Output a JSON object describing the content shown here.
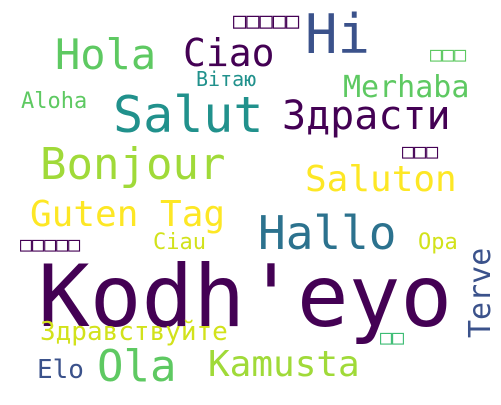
{
  "words": [
    {
      "text": "Kodh'eyo",
      "color": "#440154"
    },
    {
      "text": "Hi",
      "color": "#3b528b"
    },
    {
      "text": "Hola",
      "color": "#5ec962"
    },
    {
      "text": "Ciao",
      "color": "#440154"
    },
    {
      "text": "Salut",
      "color": "#21918c"
    },
    {
      "text": "Merhaba",
      "color": "#5ec962"
    },
    {
      "text": "Здрасти",
      "color": "#440154"
    },
    {
      "text": "Вітаю",
      "color": "#21918c"
    },
    {
      "text": "Aloha",
      "color": "#5ec962"
    },
    {
      "text": "Bonjour",
      "color": "#a0da39"
    },
    {
      "text": "Saluton",
      "color": "#fde725"
    },
    {
      "text": "Guten Tag",
      "color": "#fde725"
    },
    {
      "text": "Hallo",
      "color": "#2c728e"
    },
    {
      "text": "Ciau",
      "color": "#d2e21b"
    },
    {
      "text": "Opa",
      "color": "#d2e21b"
    },
    {
      "text": "Terve",
      "color": "#3b528b"
    },
    {
      "text": "Здравствуйте",
      "color": "#d2e21b"
    },
    {
      "text": "Elo",
      "color": "#3b528b"
    },
    {
      "text": "Ola",
      "color": "#5ec962"
    },
    {
      "text": "Kamusta",
      "color": "#a0da39"
    },
    {
      "text": "□□□□□",
      "color": "#440154"
    },
    {
      "text": "□□□",
      "color": "#5ec962"
    },
    {
      "text": "□□□",
      "color": "#440154"
    },
    {
      "text": "□□□□□",
      "color": "#440154"
    },
    {
      "text": "□□",
      "color": "#3dbc74"
    }
  ]
}
